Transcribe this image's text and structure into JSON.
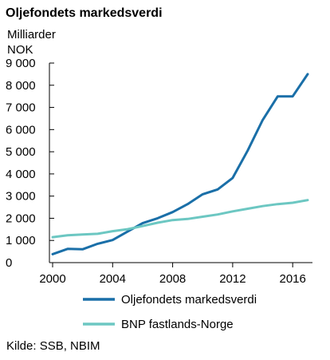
{
  "chart_data": {
    "type": "line",
    "title": "Oljefondets markedsverdi",
    "ylabel": "Milliarder\nNOK",
    "ylabel_lines": [
      "Milliarder",
      "NOK"
    ],
    "xlabel": "",
    "ylim": [
      0,
      9000
    ],
    "xlim": [
      2000,
      2017
    ],
    "yticks": [
      0,
      1000,
      2000,
      3000,
      4000,
      5000,
      6000,
      7000,
      8000,
      9000
    ],
    "ytick_labels": [
      "0",
      "1 000",
      "2 000",
      "3 000",
      "4 000",
      "5 000",
      "6 000",
      "7 000",
      "8 000",
      "9 000"
    ],
    "xticks": [
      2000,
      2004,
      2008,
      2012,
      2016
    ],
    "xtick_labels": [
      "2000",
      "2004",
      "2008",
      "2012",
      "2016"
    ],
    "grid": false,
    "legend": "bottom",
    "x": [
      2000,
      2001,
      2002,
      2003,
      2004,
      2005,
      2006,
      2007,
      2008,
      2009,
      2010,
      2011,
      2012,
      2013,
      2014,
      2015,
      2016,
      2017
    ],
    "series": [
      {
        "name": "Oljefondets markedsverdi",
        "color": "#1a6fa8",
        "values": [
          380,
          620,
          600,
          850,
          1020,
          1400,
          1780,
          2000,
          2280,
          2640,
          3080,
          3300,
          3820,
          5050,
          6430,
          7500,
          7500,
          8500
        ]
      },
      {
        "name": "BNP fastlands-Norge",
        "color": "#6cc7c2",
        "values": [
          1150,
          1230,
          1270,
          1300,
          1420,
          1510,
          1650,
          1800,
          1920,
          1970,
          2070,
          2170,
          2310,
          2430,
          2550,
          2640,
          2700,
          2820
        ]
      }
    ],
    "source": "Kilde: SSB, NBIM"
  }
}
